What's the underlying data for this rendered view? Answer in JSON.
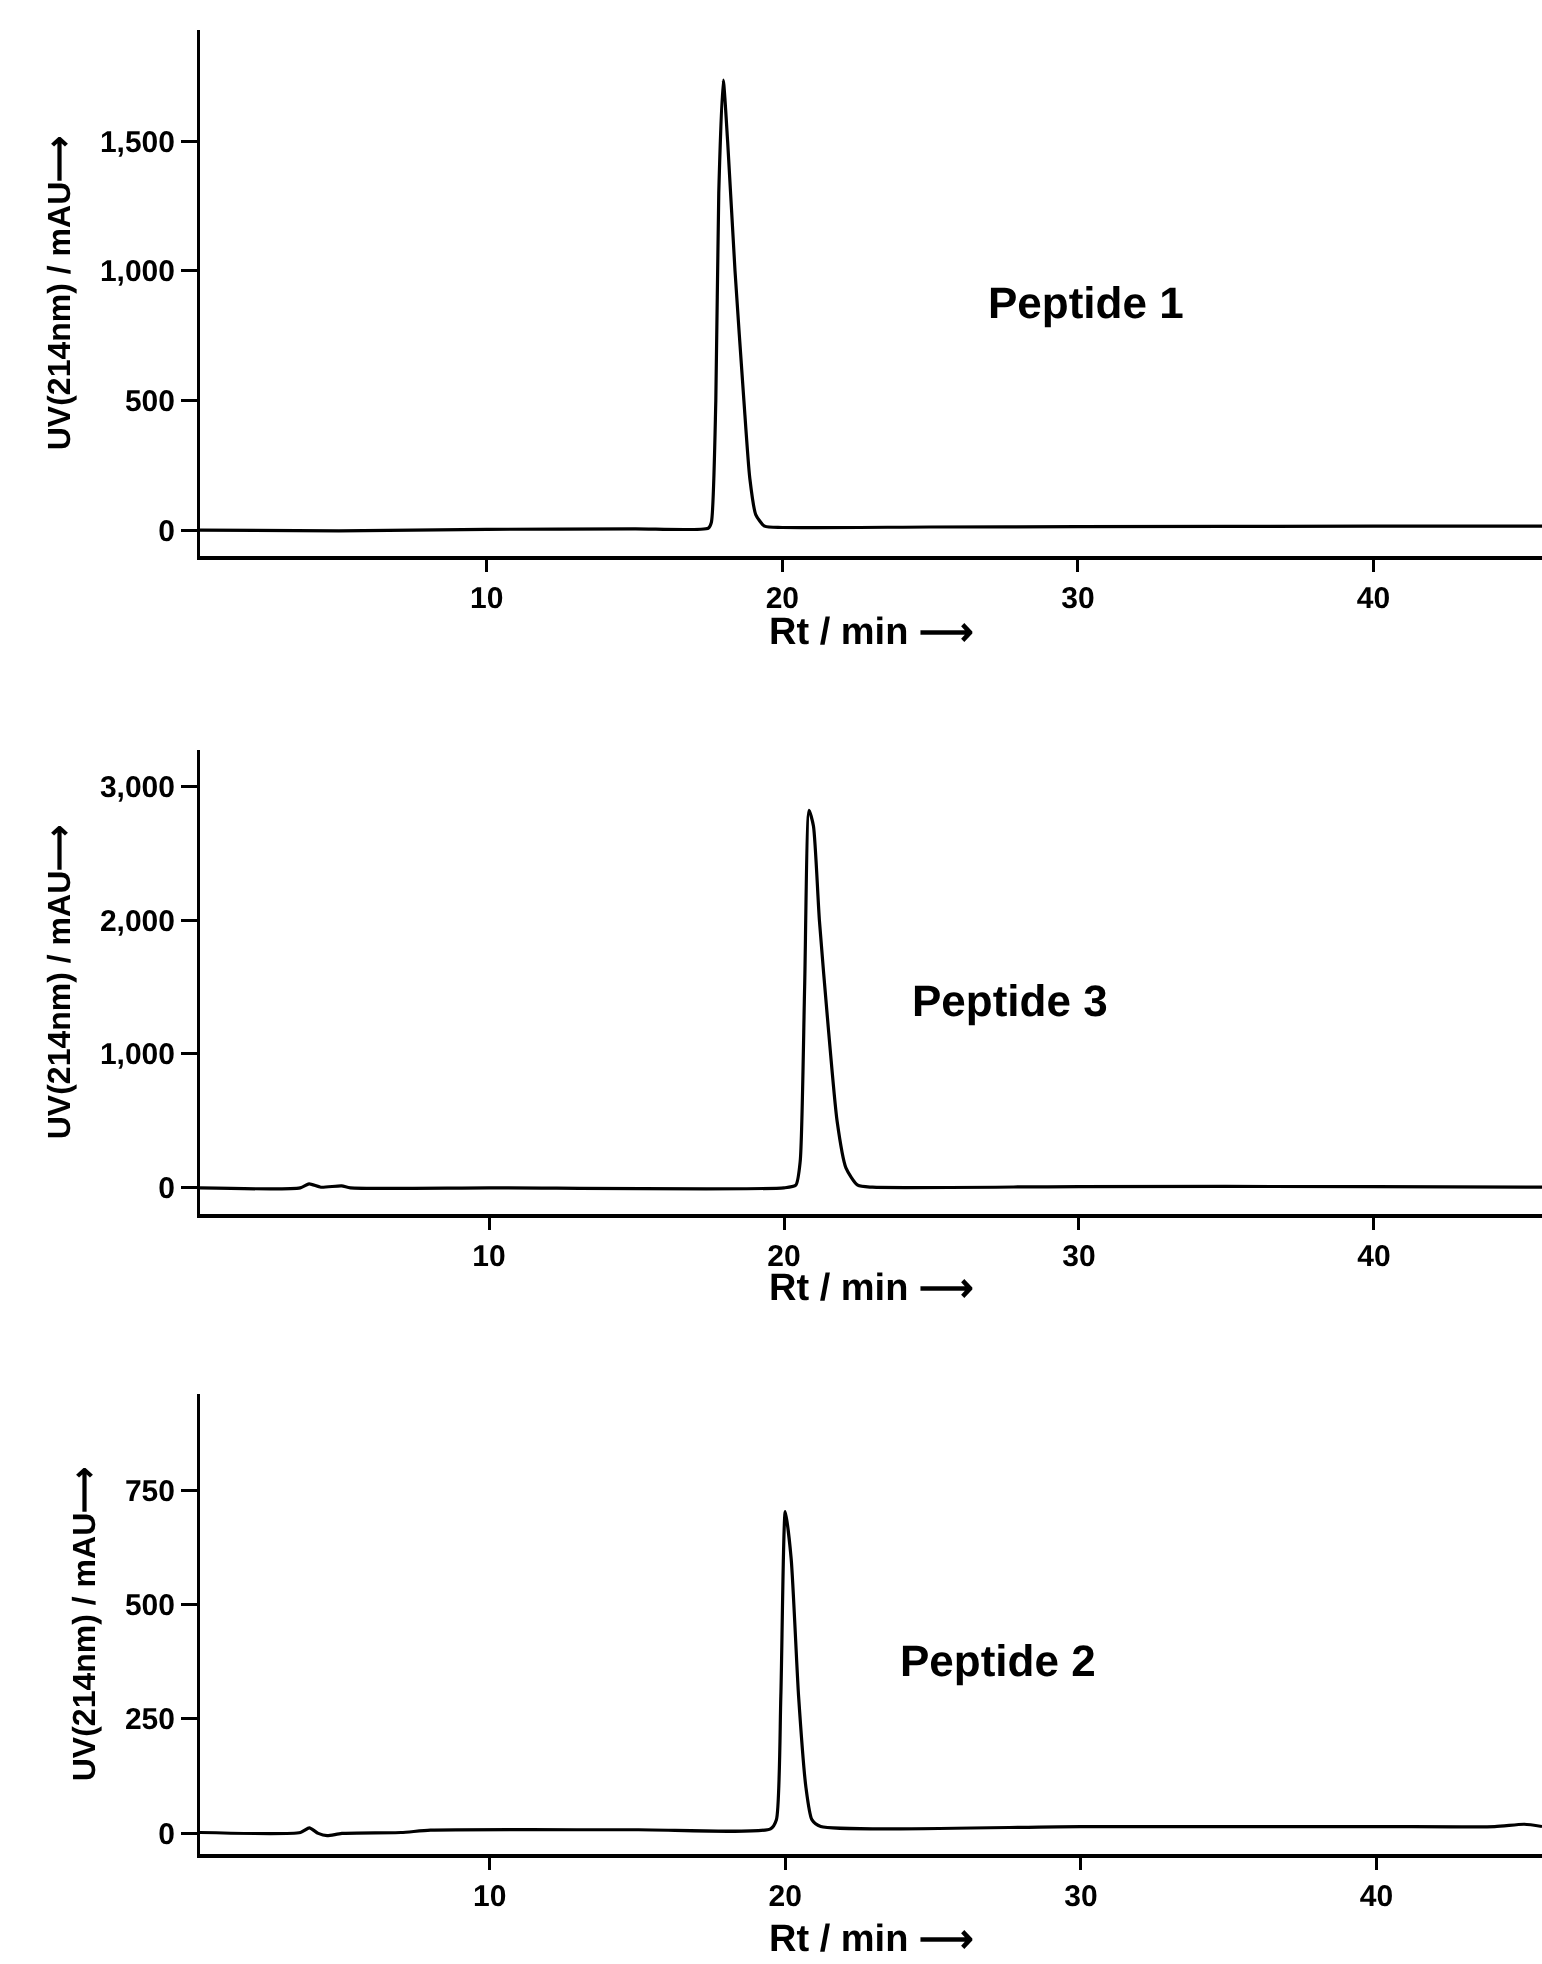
{
  "chart_data": [
    {
      "type": "line",
      "xlabel": "Rt / min ⟶",
      "ylabel": "UV(214nm) / mAU⟶",
      "annotations": [
        "Peptide 1"
      ],
      "color": "#000000",
      "x": [
        0.3,
        5,
        10,
        15,
        17.5,
        17.6,
        17.75,
        17.85,
        18.0,
        18.15,
        18.4,
        18.7,
        18.9,
        19.1,
        19.4,
        20,
        25,
        30,
        40,
        45.7
      ],
      "values": [
        0,
        -3,
        3,
        5,
        8,
        30,
        500,
        1300,
        1737,
        1500,
        1000,
        500,
        200,
        60,
        15,
        10,
        12,
        13,
        15,
        15
      ],
      "xlim": [
        0.3,
        45.7
      ],
      "ylim": [
        -100,
        1930
      ],
      "xticks": [
        10,
        20,
        30,
        40
      ],
      "yticks": [
        0,
        500,
        {
          "value": 1000,
          "label": "1,000"
        },
        {
          "value": 1500,
          "label": "1,500"
        }
      ]
    },
    {
      "type": "line",
      "xlabel": "Rt / min ⟶",
      "ylabel": "UV(214nm) / mAU⟶",
      "annotations": [
        "Peptide 3"
      ],
      "color": "#000000",
      "x": [
        0.2,
        3.6,
        3.9,
        4.3,
        5,
        5.3,
        10,
        20,
        20.4,
        20.55,
        20.7,
        20.85,
        21.0,
        21.2,
        21.5,
        21.8,
        22.1,
        22.5,
        23,
        30,
        40,
        45.7
      ],
      "values": [
        0,
        0,
        30,
        5,
        15,
        0,
        0,
        0,
        20,
        200,
        1500,
        2820,
        2700,
        2000,
        1200,
        500,
        150,
        20,
        5,
        10,
        10,
        5
      ],
      "xlim": [
        0.2,
        45.7
      ],
      "ylim": [
        -195,
        3270
      ],
      "xticks": [
        10,
        20,
        30,
        40
      ],
      "yticks": [
        0,
        {
          "value": 1000,
          "label": "1,000"
        },
        {
          "value": 2000,
          "label": "2,000"
        },
        {
          "value": 3000,
          "label": "3,000"
        }
      ]
    },
    {
      "type": "line",
      "xlabel": "Rt / min ⟶",
      "ylabel": "UV(214nm) / mAU⟶",
      "annotations": [
        "Peptide 2"
      ],
      "color": "#000000",
      "x": [
        0.2,
        3.6,
        3.9,
        4.2,
        4.5,
        5,
        7,
        8,
        15,
        19.5,
        19.7,
        19.85,
        20.0,
        20.2,
        20.45,
        20.7,
        20.9,
        21.2,
        30,
        40,
        44,
        45,
        45.6
      ],
      "values": [
        2,
        2,
        12,
        0,
        -5,
        0,
        2,
        7,
        8,
        10,
        30,
        300,
        703,
        600,
        300,
        100,
        30,
        15,
        15,
        15,
        15,
        20,
        15
      ],
      "xlim": [
        0.2,
        45.6
      ],
      "ylim": [
        -45,
        960
      ],
      "xticks": [
        10,
        20,
        30,
        40
      ],
      "yticks": [
        0,
        250,
        500,
        750
      ]
    }
  ]
}
